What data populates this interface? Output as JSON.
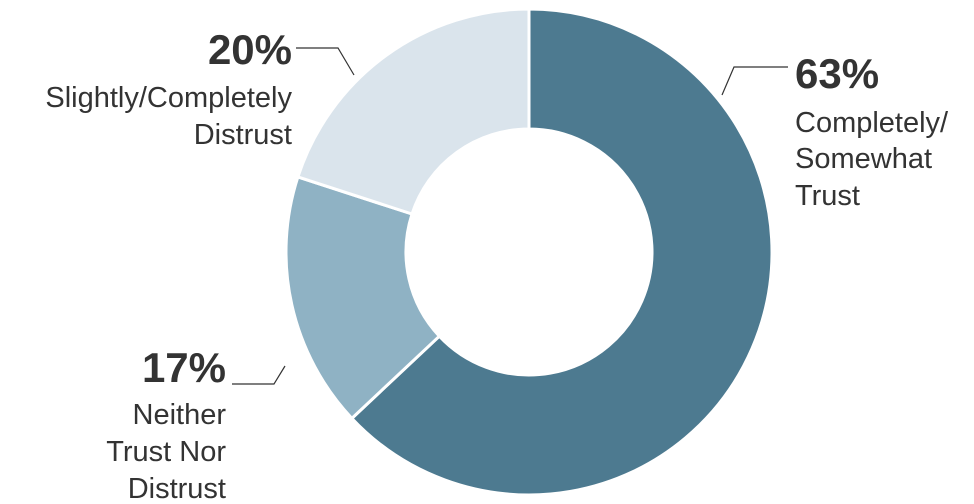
{
  "chart_data": {
    "type": "pie",
    "variant": "donut",
    "title": "",
    "slices": [
      {
        "value": 63,
        "value_label": "63%",
        "label_lines": [
          "Completely/",
          "Somewhat",
          "Trust"
        ],
        "color": "#4d7a90"
      },
      {
        "value": 17,
        "value_label": "17%",
        "label_lines": [
          "Neither",
          "Trust Nor",
          "Distrust"
        ],
        "color": "#8fb2c4"
      },
      {
        "value": 20,
        "value_label": "20%",
        "label_lines": [
          "Slightly/Completely",
          "Distrust"
        ],
        "color": "#dae4ec"
      }
    ],
    "start_angle": "12 o'clock",
    "direction": "clockwise",
    "legend": "none"
  }
}
